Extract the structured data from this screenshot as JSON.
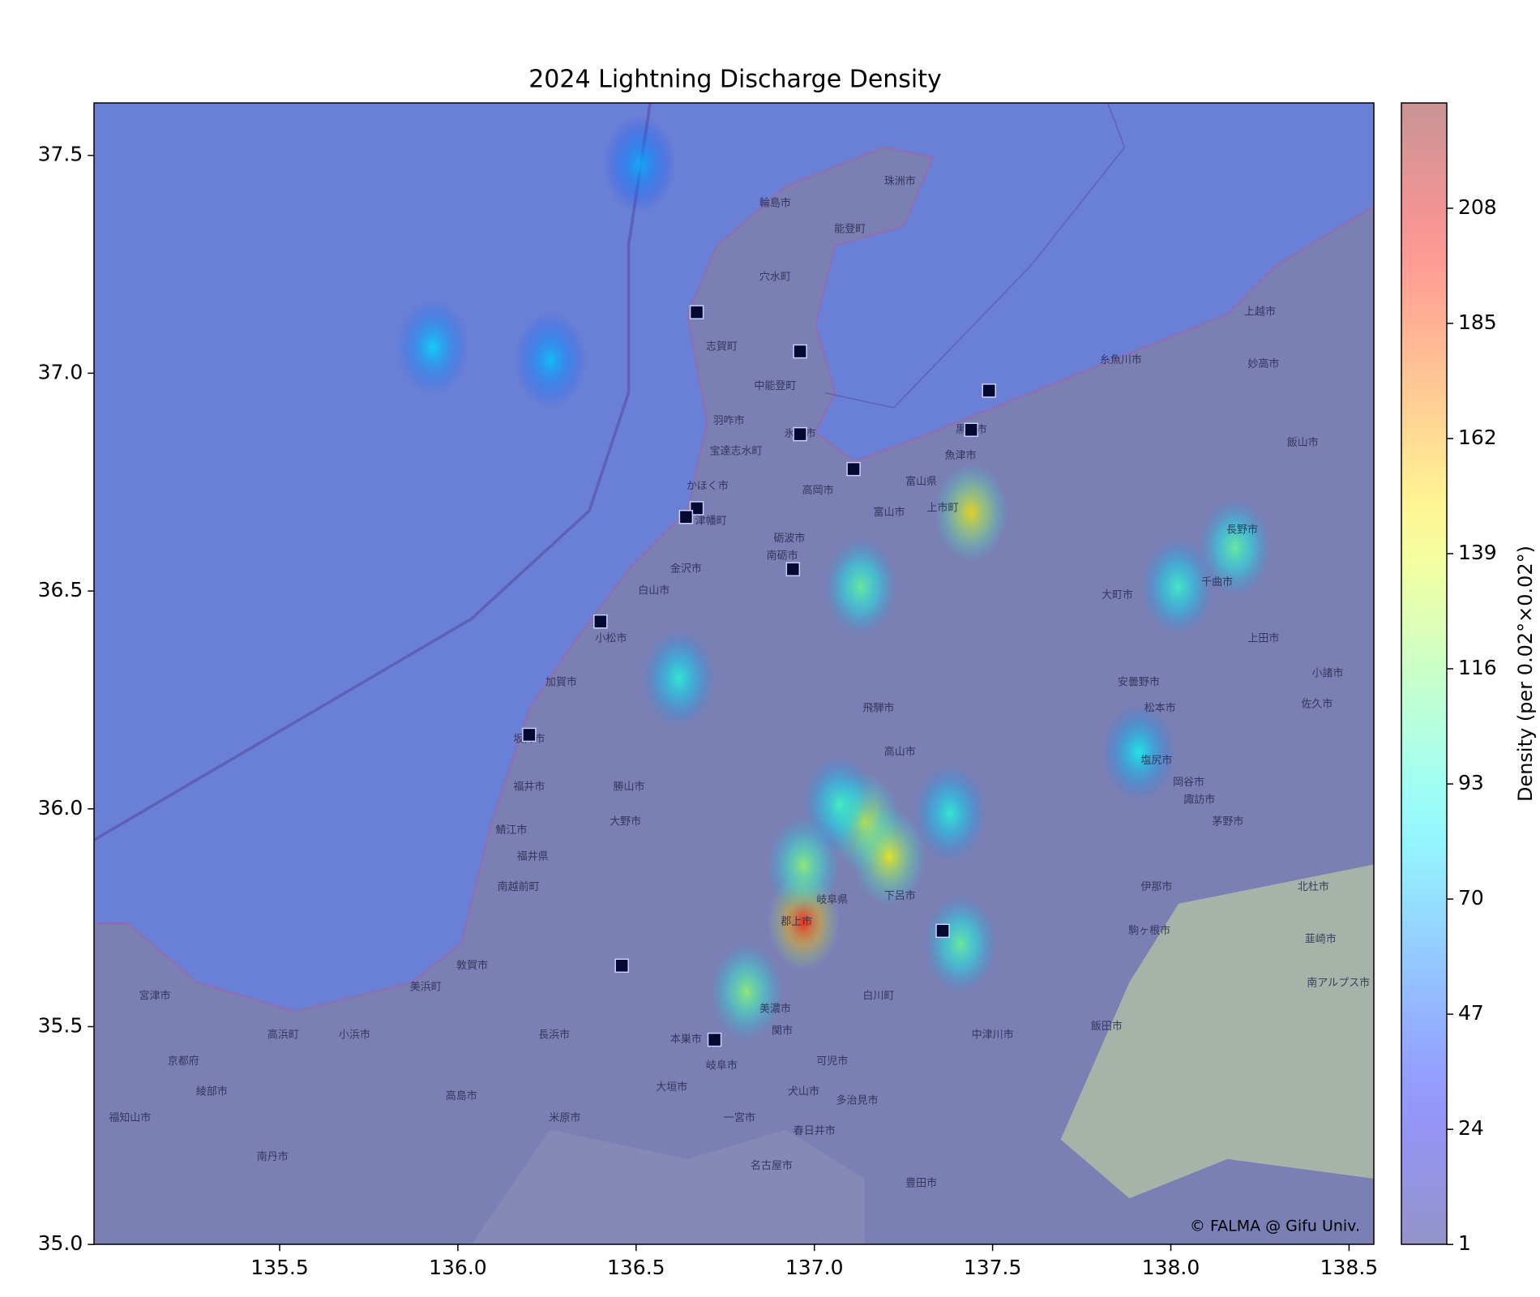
{
  "chart_data": {
    "type": "heatmap",
    "title": "2024 Lightning Discharge Density",
    "colorbar_label": "Density (per 0.02°×0.02°)",
    "attribution": "© FALMA @ Gifu Univ.",
    "colormap": "jet",
    "xlim": [
      134.98,
      138.57
    ],
    "ylim": [
      35.0,
      37.62
    ],
    "xticks": [
      135.5,
      {
        "value": 136,
        "label": "136.0"
      },
      136.5,
      {
        "value": 137,
        "label": "137.0"
      },
      137.5,
      {
        "value": 138,
        "label": "138.0"
      },
      138.5
    ],
    "yticks": [
      {
        "value": 35,
        "label": "35.0"
      },
      35.5,
      {
        "value": 36,
        "label": "36.0"
      },
      36.5,
      {
        "value": 37,
        "label": "37.0"
      },
      37.5
    ],
    "clim": [
      1,
      229
    ],
    "cticks": [
      1,
      24,
      47,
      70,
      93,
      116,
      139,
      162,
      185,
      208
    ],
    "hotspots": {
      "lon": [
        135.93,
        136.97,
        137.44,
        137.14,
        137.07,
        137.21,
        137.13,
        138.18,
        137.91,
        137.38,
        136.97,
        136.26,
        136.51,
        138.02,
        136.81,
        137.41,
        136.62
      ],
      "lat": [
        37.06,
        35.74,
        36.68,
        35.97,
        36.01,
        35.89,
        36.51,
        36.6,
        36.13,
        35.99,
        35.87,
        37.03,
        37.48,
        36.51,
        35.58,
        35.69,
        36.3
      ],
      "values": [
        80,
        195,
        150,
        140,
        100,
        145,
        110,
        110,
        90,
        95,
        120,
        75,
        70,
        100,
        120,
        110,
        95
      ]
    },
    "stations": {
      "lon": [
        136.67,
        136.96,
        137.49,
        136.96,
        137.44,
        137.11,
        136.67,
        136.64,
        136.94,
        136.4,
        136.2,
        137.36,
        136.46,
        136.72
      ],
      "lat": [
        37.14,
        37.05,
        36.96,
        36.86,
        36.87,
        36.78,
        36.69,
        36.67,
        36.55,
        36.43,
        36.17,
        35.72,
        35.64,
        35.47
      ]
    },
    "places": [
      {
        "name": "珠洲市",
        "lon": 137.24,
        "lat": 37.44
      },
      {
        "name": "輪島市",
        "lon": 136.89,
        "lat": 37.39
      },
      {
        "name": "能登町",
        "lon": 137.1,
        "lat": 37.33
      },
      {
        "name": "穴水町",
        "lon": 136.89,
        "lat": 37.22
      },
      {
        "name": "志賀町",
        "lon": 136.74,
        "lat": 37.06
      },
      {
        "name": "中能登町",
        "lon": 136.89,
        "lat": 36.97
      },
      {
        "name": "羽咋市",
        "lon": 136.76,
        "lat": 36.89
      },
      {
        "name": "宝達志水町",
        "lon": 136.78,
        "lat": 36.82
      },
      {
        "name": "かほく市",
        "lon": 136.7,
        "lat": 36.74
      },
      {
        "name": "津幡町",
        "lon": 136.71,
        "lat": 36.66
      },
      {
        "name": "金沢市",
        "lon": 136.64,
        "lat": 36.55
      },
      {
        "name": "白山市",
        "lon": 136.55,
        "lat": 36.5
      },
      {
        "name": "小松市",
        "lon": 136.43,
        "lat": 36.39
      },
      {
        "name": "加賀市",
        "lon": 136.29,
        "lat": 36.29
      },
      {
        "name": "坂井市",
        "lon": 136.2,
        "lat": 36.16
      },
      {
        "name": "福井市",
        "lon": 136.2,
        "lat": 36.05
      },
      {
        "name": "勝山市",
        "lon": 136.48,
        "lat": 36.05
      },
      {
        "name": "大野市",
        "lon": 136.47,
        "lat": 35.97
      },
      {
        "name": "鯖江市",
        "lon": 136.15,
        "lat": 35.95
      },
      {
        "name": "福井県",
        "lon": 136.21,
        "lat": 35.89
      },
      {
        "name": "南越前町",
        "lon": 136.17,
        "lat": 35.82
      },
      {
        "name": "敦賀市",
        "lon": 136.04,
        "lat": 35.64
      },
      {
        "name": "美浜町",
        "lon": 135.91,
        "lat": 35.59
      },
      {
        "name": "小浜市",
        "lon": 135.71,
        "lat": 35.48
      },
      {
        "name": "高浜町",
        "lon": 135.51,
        "lat": 35.48
      },
      {
        "name": "宮津市",
        "lon": 135.15,
        "lat": 35.57
      },
      {
        "name": "京都府",
        "lon": 135.23,
        "lat": 35.42
      },
      {
        "name": "綾部市",
        "lon": 135.31,
        "lat": 35.35
      },
      {
        "name": "福知山市",
        "lon": 135.08,
        "lat": 35.29
      },
      {
        "name": "南丹市",
        "lon": 135.48,
        "lat": 35.2
      },
      {
        "name": "高島市",
        "lon": 136.01,
        "lat": 35.34
      },
      {
        "name": "長浜市",
        "lon": 136.27,
        "lat": 35.48
      },
      {
        "name": "米原市",
        "lon": 136.3,
        "lat": 35.29
      },
      {
        "name": "大垣市",
        "lon": 136.6,
        "lat": 35.36
      },
      {
        "name": "本巣市",
        "lon": 136.64,
        "lat": 35.47
      },
      {
        "name": "岐阜市",
        "lon": 136.74,
        "lat": 35.41
      },
      {
        "name": "美濃市",
        "lon": 136.89,
        "lat": 35.54
      },
      {
        "name": "関市",
        "lon": 136.91,
        "lat": 35.49
      },
      {
        "name": "可児市",
        "lon": 137.05,
        "lat": 35.42
      },
      {
        "name": "犬山市",
        "lon": 136.97,
        "lat": 35.35
      },
      {
        "name": "一宮市",
        "lon": 136.79,
        "lat": 35.29
      },
      {
        "name": "春日井市",
        "lon": 137.0,
        "lat": 35.26
      },
      {
        "name": "名古屋市",
        "lon": 136.88,
        "lat": 35.18
      },
      {
        "name": "多治見市",
        "lon": 137.12,
        "lat": 35.33
      },
      {
        "name": "豊田市",
        "lon": 137.3,
        "lat": 35.14
      },
      {
        "name": "郡上市",
        "lon": 136.95,
        "lat": 35.74
      },
      {
        "name": "岐阜県",
        "lon": 137.05,
        "lat": 35.79
      },
      {
        "name": "下呂市",
        "lon": 137.24,
        "lat": 35.8
      },
      {
        "name": "白川町",
        "lon": 137.18,
        "lat": 35.57
      },
      {
        "name": "中津川市",
        "lon": 137.5,
        "lat": 35.48
      },
      {
        "name": "高山市",
        "lon": 137.24,
        "lat": 36.13
      },
      {
        "name": "飛騨市",
        "lon": 137.18,
        "lat": 36.23
      },
      {
        "name": "高岡市",
        "lon": 137.01,
        "lat": 36.73
      },
      {
        "name": "富山市",
        "lon": 137.21,
        "lat": 36.68
      },
      {
        "name": "富山県",
        "lon": 137.3,
        "lat": 36.75
      },
      {
        "name": "上市町",
        "lon": 137.36,
        "lat": 36.69
      },
      {
        "name": "砺波市",
        "lon": 136.93,
        "lat": 36.62
      },
      {
        "name": "南砺市",
        "lon": 136.91,
        "lat": 36.58
      },
      {
        "name": "氷見市",
        "lon": 136.96,
        "lat": 36.86
      },
      {
        "name": "黒部市",
        "lon": 137.44,
        "lat": 36.87
      },
      {
        "name": "魚津市",
        "lon": 137.41,
        "lat": 36.81
      },
      {
        "name": "糸魚川市",
        "lon": 137.86,
        "lat": 37.03
      },
      {
        "name": "上越市",
        "lon": 138.25,
        "lat": 37.14
      },
      {
        "name": "妙高市",
        "lon": 138.26,
        "lat": 37.02
      },
      {
        "name": "飯山市",
        "lon": 138.37,
        "lat": 36.84
      },
      {
        "name": "長野市",
        "lon": 138.2,
        "lat": 36.64
      },
      {
        "name": "千曲市",
        "lon": 138.13,
        "lat": 36.52
      },
      {
        "name": "上田市",
        "lon": 138.26,
        "lat": 36.39
      },
      {
        "name": "大町市",
        "lon": 137.85,
        "lat": 36.49
      },
      {
        "name": "安曇野市",
        "lon": 137.91,
        "lat": 36.29
      },
      {
        "name": "松本市",
        "lon": 137.97,
        "lat": 36.23
      },
      {
        "name": "塩尻市",
        "lon": 137.96,
        "lat": 36.11
      },
      {
        "name": "岡谷市",
        "lon": 138.05,
        "lat": 36.06
      },
      {
        "name": "諏訪市",
        "lon": 138.08,
        "lat": 36.02
      },
      {
        "name": "茅野市",
        "lon": 138.16,
        "lat": 35.97
      },
      {
        "name": "伊那市",
        "lon": 137.96,
        "lat": 35.82
      },
      {
        "name": "駒ヶ根市",
        "lon": 137.94,
        "lat": 35.72
      },
      {
        "name": "飯田市",
        "lon": 137.82,
        "lat": 35.5
      },
      {
        "name": "小諸市",
        "lon": 138.44,
        "lat": 36.31
      },
      {
        "name": "佐久市",
        "lon": 138.41,
        "lat": 36.24
      },
      {
        "name": "北杜市",
        "lon": 138.4,
        "lat": 35.82
      },
      {
        "name": "韮崎市",
        "lon": 138.42,
        "lat": 35.7
      },
      {
        "name": "南アルプス市",
        "lon": 138.47,
        "lat": 35.6
      }
    ]
  }
}
